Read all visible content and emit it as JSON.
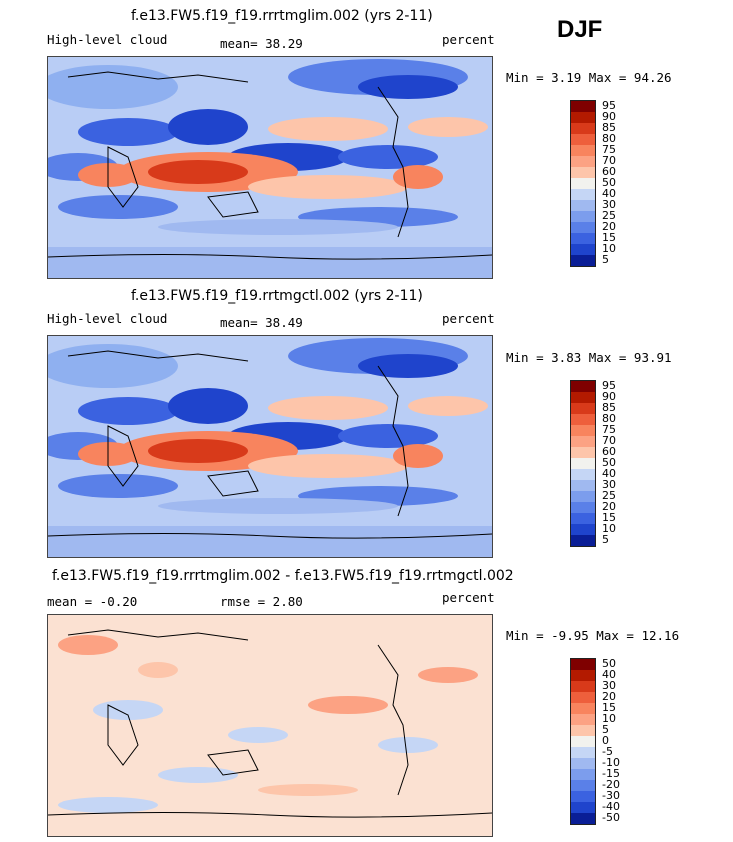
{
  "season": "DJF",
  "panels": [
    {
      "title": "f.e13.FW5.f19_f19.rrrtmglim.002 (yrs 2-11)",
      "left_label": "High-level cloud",
      "mid_label": "mean=  38.29",
      "right_label": "percent",
      "minmax": "Min =   3.19 Max =  94.26",
      "colorbar": [
        "95",
        "90",
        "85",
        "80",
        "75",
        "70",
        "60",
        "50",
        "40",
        "30",
        "25",
        "20",
        "15",
        "10",
        "5"
      ]
    },
    {
      "title": "f.e13.FW5.f19_f19.rrtmgctl.002 (yrs 2-11)",
      "left_label": "High-level cloud",
      "mid_label": "mean=  38.49",
      "right_label": "percent",
      "minmax": "Min =   3.83 Max =  93.91",
      "colorbar": [
        "95",
        "90",
        "85",
        "80",
        "75",
        "70",
        "60",
        "50",
        "40",
        "30",
        "25",
        "20",
        "15",
        "10",
        "5"
      ]
    },
    {
      "title": "f.e13.FW5.f19_f19.rrrtmglim.002 - f.e13.FW5.f19_f19.rrtmgctl.002",
      "left_label": "mean =  -0.20",
      "mid_label": "rmse =   2.80",
      "right_label": "percent",
      "minmax": "Min =  -9.95 Max =  12.16",
      "colorbar": [
        "50",
        "40",
        "30",
        "20",
        "15",
        "10",
        "5",
        "0",
        "-5",
        "-10",
        "-15",
        "-20",
        "-30",
        "-40",
        "-50"
      ]
    }
  ],
  "colors": {
    "scale": [
      "#7f0000",
      "#b31a00",
      "#d83a1a",
      "#ee5f3c",
      "#f8845e",
      "#fca283",
      "#fdc5aa",
      "#f2f2ee",
      "#c5d6f5",
      "#a0b9f0",
      "#7c9ded",
      "#5a80e8",
      "#3b62e0",
      "#1f44cc",
      "#0a1e96"
    ],
    "ocean_base": "#b9cdf5",
    "diff_base": "#fbe1d2"
  }
}
